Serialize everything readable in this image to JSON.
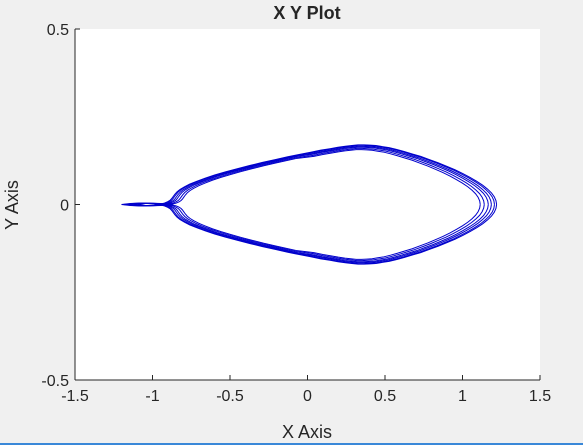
{
  "window": {
    "accent_bottom": "#3a88d8",
    "background": "#f0f0f0"
  },
  "chart_data": {
    "type": "line",
    "title": "X Y Plot",
    "xlabel": "X Axis",
    "ylabel": "Y Axis",
    "xlim": [
      -1.5,
      1.5
    ],
    "ylim": [
      -0.5,
      0.5
    ],
    "xticks": [
      -1.5,
      -1,
      -0.5,
      0,
      0.5,
      1,
      1.5
    ],
    "yticks": [
      -0.5,
      0,
      0.5
    ],
    "xtick_labels": [
      "-1.5",
      "-1",
      "-0.5",
      "0",
      "0.5",
      "1",
      "1.5"
    ],
    "ytick_labels": [
      "-0.5",
      "0",
      "0.5"
    ],
    "grid": false,
    "line_color": "#0000cc",
    "series": [
      {
        "description_free": true,
        "x": [
          1.22,
          1.216,
          1.205,
          1.187,
          1.161,
          1.13,
          1.092,
          1.049,
          1.002,
          0.951,
          0.897,
          0.842,
          0.786,
          0.73,
          0.676,
          0.623,
          0.573,
          0.526,
          0.482,
          0.441,
          0.402,
          0.364,
          0.326,
          0.286,
          0.244,
          0.197,
          0.145,
          0.086,
          0.021,
          -0.05,
          -0.127,
          -0.208,
          -0.29,
          -0.373,
          -0.453,
          -0.529,
          -0.599,
          -0.661,
          -0.715,
          -0.76,
          -0.795,
          -0.822,
          -0.842,
          -0.856,
          -0.866,
          -0.876,
          -0.887,
          -0.902,
          -0.923,
          -0.952,
          -0.989,
          -1.035,
          -1.087,
          -1.143,
          -1.2,
          -1.2,
          -1.143,
          -1.087,
          -1.035,
          -0.989,
          -0.952,
          -0.923,
          -0.902,
          -0.887,
          -0.876,
          -0.866,
          -0.856,
          -0.842,
          -0.822,
          -0.795,
          -0.76,
          -0.715,
          -0.661,
          -0.599,
          -0.529,
          -0.453,
          -0.373,
          -0.29,
          -0.208,
          -0.127,
          -0.05,
          0.021,
          0.086,
          0.145,
          0.197,
          0.244,
          0.286,
          0.326,
          0.364,
          0.402,
          0.441,
          0.482,
          0.526,
          0.573,
          0.623,
          0.676,
          0.73,
          0.786,
          0.842,
          0.897,
          0.951,
          1.002,
          1.049,
          1.092,
          1.13,
          1.161,
          1.187,
          1.205,
          1.216,
          1.22
        ],
        "y": [
          0.0,
          0.011,
          0.022,
          0.033,
          0.044,
          0.055,
          0.066,
          0.077,
          0.088,
          0.099,
          0.109,
          0.119,
          0.128,
          0.137,
          0.144,
          0.151,
          0.157,
          0.162,
          0.165,
          0.168,
          0.169,
          0.17,
          0.17,
          0.168,
          0.166,
          0.163,
          0.159,
          0.155,
          0.149,
          0.143,
          0.136,
          0.128,
          0.12,
          0.111,
          0.102,
          0.093,
          0.084,
          0.075,
          0.066,
          0.058,
          0.05,
          0.043,
          0.036,
          0.029,
          0.023,
          0.017,
          0.012,
          0.008,
          0.004,
          0.001,
          -0.002,
          -0.003,
          -0.004,
          -0.003,
          0.0,
          0.0,
          0.003,
          0.004,
          0.003,
          0.002,
          -0.001,
          -0.004,
          -0.008,
          -0.012,
          -0.017,
          -0.023,
          -0.029,
          -0.036,
          -0.043,
          -0.05,
          -0.058,
          -0.066,
          -0.075,
          -0.084,
          -0.093,
          -0.102,
          -0.111,
          -0.12,
          -0.128,
          -0.136,
          -0.143,
          -0.149,
          -0.155,
          -0.159,
          -0.163,
          -0.166,
          -0.168,
          -0.17,
          -0.17,
          -0.169,
          -0.168,
          -0.165,
          -0.162,
          -0.157,
          -0.151,
          -0.144,
          -0.137,
          -0.128,
          -0.119,
          -0.109,
          -0.099,
          -0.088,
          -0.077,
          -0.066,
          -0.055,
          -0.044,
          -0.033,
          -0.022,
          -0.011,
          0.0
        ]
      }
    ]
  }
}
